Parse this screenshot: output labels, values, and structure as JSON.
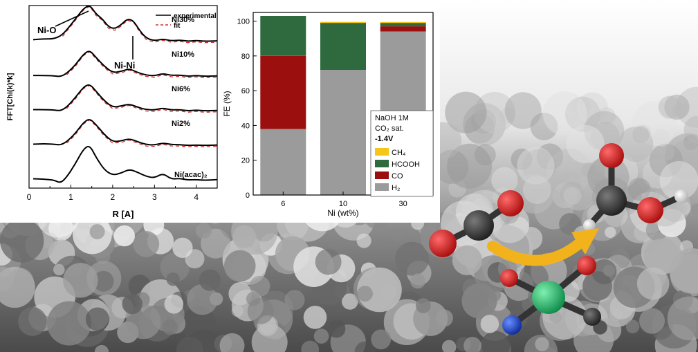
{
  "exafs": {
    "type": "line",
    "ylabel": "FFT[Chi(k)*k]",
    "xlabel": "R [A]",
    "xlim": [
      0,
      4.5
    ],
    "xticks": [
      "0",
      "1",
      "2",
      "3",
      "4"
    ],
    "legend": [
      {
        "label": "experimental",
        "style": "solid"
      },
      {
        "label": "fit",
        "style": "dashed"
      }
    ],
    "annotations": [
      "Ni-O",
      "Ni-Ni"
    ],
    "series": [
      {
        "name": "Ni30%",
        "offset": 4,
        "x": [
          0.1,
          0.35,
          0.6,
          0.8,
          1.0,
          1.2,
          1.3,
          1.45,
          1.6,
          1.75,
          1.9,
          2.05,
          2.2,
          2.35,
          2.5,
          2.65,
          2.8,
          3.0,
          3.2,
          3.4,
          3.6,
          3.8,
          4.0,
          4.2,
          4.5
        ],
        "y": [
          0.08,
          0.1,
          0.1,
          0.2,
          0.45,
          0.72,
          0.85,
          0.95,
          0.72,
          0.6,
          0.4,
          0.35,
          0.45,
          0.6,
          0.55,
          0.3,
          0.12,
          0.05,
          0.1,
          0.05,
          0.07,
          0.04,
          0.06,
          0.04,
          0.05
        ]
      },
      {
        "name": "Ni10%",
        "offset": 3,
        "x": [
          0.1,
          0.35,
          0.6,
          0.75,
          0.9,
          1.1,
          1.3,
          1.45,
          1.6,
          1.8,
          2.0,
          2.2,
          2.4,
          2.6,
          2.8,
          3.0,
          3.2,
          3.4,
          3.6,
          3.8,
          4.0,
          4.2,
          4.5
        ],
        "y": [
          0.05,
          0.05,
          0.04,
          0.02,
          0.1,
          0.3,
          0.58,
          0.68,
          0.5,
          0.28,
          0.12,
          0.15,
          0.22,
          0.12,
          0.06,
          0.04,
          0.1,
          0.05,
          0.06,
          0.03,
          0.05,
          0.03,
          0.04
        ]
      },
      {
        "name": "Ni6%",
        "offset": 2,
        "x": [
          0.1,
          0.35,
          0.6,
          0.75,
          0.9,
          1.1,
          1.3,
          1.45,
          1.6,
          1.8,
          2.0,
          2.2,
          2.4,
          2.6,
          2.8,
          3.0,
          3.2,
          3.4,
          3.6,
          3.8,
          4.0,
          4.2,
          4.5
        ],
        "y": [
          0.06,
          0.06,
          0.05,
          0.03,
          0.12,
          0.35,
          0.62,
          0.7,
          0.52,
          0.28,
          0.12,
          0.15,
          0.2,
          0.12,
          0.06,
          0.05,
          0.1,
          0.05,
          0.06,
          0.03,
          0.05,
          0.03,
          0.04
        ]
      },
      {
        "name": "Ni2%",
        "offset": 1,
        "x": [
          0.1,
          0.35,
          0.6,
          0.75,
          0.9,
          1.1,
          1.3,
          1.45,
          1.6,
          1.8,
          2.0,
          2.2,
          2.4,
          2.6,
          2.8,
          3.0,
          3.2,
          3.4,
          3.6,
          3.8,
          4.0,
          4.2,
          4.5
        ],
        "y": [
          0.06,
          0.07,
          0.06,
          0.04,
          0.12,
          0.32,
          0.6,
          0.7,
          0.55,
          0.3,
          0.12,
          0.14,
          0.2,
          0.12,
          0.05,
          0.04,
          0.09,
          0.05,
          0.05,
          0.03,
          0.04,
          0.03,
          0.04
        ]
      },
      {
        "name": "Ni(acac)₂",
        "offset": 0,
        "x": [
          0.1,
          0.35,
          0.6,
          0.75,
          0.9,
          1.1,
          1.3,
          1.45,
          1.6,
          1.8,
          2.0,
          2.2,
          2.4,
          2.6,
          2.8,
          3.0,
          3.2,
          3.4,
          3.6,
          3.8,
          4.0,
          4.2,
          4.5
        ],
        "y": [
          0.06,
          0.05,
          0.03,
          -0.05,
          0.1,
          0.42,
          0.8,
          0.9,
          0.6,
          0.28,
          0.15,
          0.2,
          0.3,
          0.22,
          0.12,
          0.08,
          0.2,
          0.05,
          0.07,
          0.03,
          0.04,
          0.02,
          0.04
        ]
      }
    ]
  },
  "fe": {
    "type": "bar",
    "ylabel": "FE (%)",
    "xlabel": "Ni (wt%)",
    "ylim": [
      0,
      105
    ],
    "yticks": [
      "0",
      "20",
      "40",
      "60",
      "80",
      "100"
    ],
    "categories": [
      "6",
      "10",
      "30"
    ],
    "legend_title_lines": [
      "NaOH 1M",
      "CO₂ sat.",
      "-1.4V"
    ],
    "series": [
      {
        "name": "H₂",
        "color": "#9b9b9b",
        "values": [
          38,
          72,
          94
        ]
      },
      {
        "name": "CO",
        "color": "#9c0f0f",
        "values": [
          42,
          0,
          3
        ]
      },
      {
        "name": "HCOOH",
        "color": "#2e6a3e",
        "values": [
          23,
          27,
          2
        ]
      },
      {
        "name": "CH₄",
        "color": "#f5c518",
        "values": [
          0,
          0.6,
          0.5
        ]
      }
    ],
    "legend_order": [
      3,
      2,
      1,
      0
    ]
  },
  "colors": {
    "oxygen": "#d11a1a",
    "carbon": "#3c3c3c",
    "hydrogen": "#e6e6e6",
    "nickel": "#21c46e",
    "nitrogen": "#1f4fd1",
    "arrow": "#f2b21c",
    "fit_line": "#d42a2a"
  }
}
